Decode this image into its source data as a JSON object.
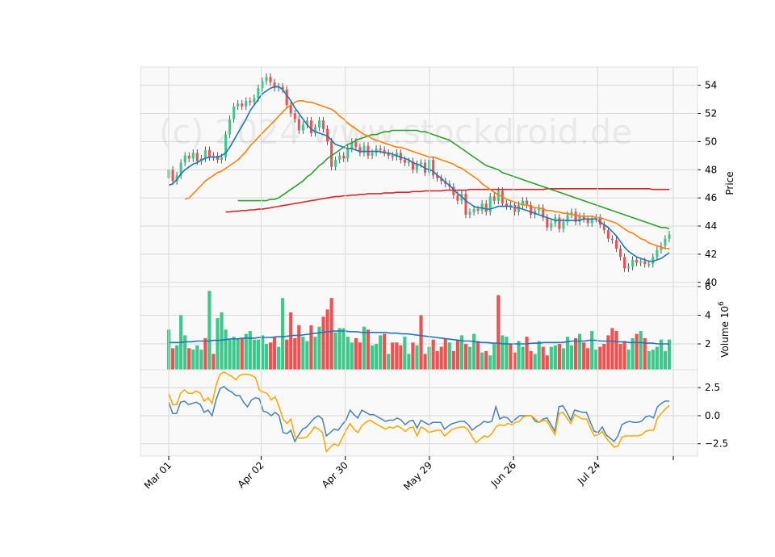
{
  "chart_data": [
    {
      "type": "candlestick",
      "panel": "price",
      "ylabel": "Price",
      "ylim": [
        39.7,
        55.3
      ],
      "yticks": [
        "40",
        "42",
        "44",
        "46",
        "48",
        "50",
        "52",
        "54"
      ],
      "xticks": [
        "Mar 01",
        "Apr 02",
        "Apr 30",
        "May 29",
        "Jun 26",
        "Jul 24"
      ],
      "watermark": "(c) 2024 www.stockdroid.de",
      "grid": true,
      "colors": {
        "up": "#3cc88a",
        "down": "#f05050",
        "ma10": "#1f77b4",
        "ma20": "#ff7f0e",
        "ma50": "#2ca02c",
        "ma200": "#d62728",
        "grid": "#d8d8d8",
        "panel_bg": "#f9f9f9"
      },
      "close": [
        48.0,
        47.2,
        47.6,
        48.5,
        49.0,
        48.8,
        49.2,
        48.6,
        48.8,
        49.4,
        48.9,
        49.0,
        48.7,
        48.9,
        50.5,
        51.6,
        52.5,
        52.7,
        52.5,
        52.9,
        52.8,
        53.1,
        53.8,
        54.3,
        54.6,
        54.2,
        53.8,
        53.9,
        53.7,
        52.6,
        52.0,
        51.6,
        50.8,
        51.2,
        51.5,
        50.6,
        51.0,
        51.5,
        50.9,
        50.0,
        48.2,
        48.7,
        49.0,
        48.8,
        49.5,
        50.0,
        49.6,
        49.2,
        49.7,
        49.0,
        49.2,
        49.5,
        49.4,
        49.2,
        49.0,
        48.9,
        49.2,
        48.7,
        48.5,
        48.6,
        48.0,
        48.4,
        48.5,
        47.8,
        48.7,
        47.6,
        47.4,
        47.2,
        47.0,
        46.8,
        46.2,
        45.8,
        46.3,
        44.8,
        45.0,
        45.2,
        45.1,
        45.6,
        45.0,
        46.1,
        45.8,
        46.5,
        45.6,
        45.4,
        45.5,
        45.0,
        45.5,
        45.8,
        45.5,
        44.8,
        45.1,
        45.3,
        44.6,
        43.9,
        44.2,
        44.6,
        43.8,
        44.3,
        44.8,
        45.0,
        44.3,
        44.7,
        44.5,
        44.2,
        44.5,
        44.6,
        44.1,
        43.7,
        43.1,
        43.0,
        42.4,
        41.8,
        41.0,
        41.1,
        41.6,
        41.4,
        41.5,
        41.3,
        41.3,
        41.8,
        42.3,
        42.6,
        43.1,
        43.4
      ],
      "ma10": [
        46.9,
        47.0,
        47.3,
        47.7,
        48.0,
        48.2,
        48.4,
        48.5,
        48.7,
        48.8,
        48.9,
        48.9,
        48.9,
        49.0,
        49.2,
        49.6,
        50.1,
        50.6,
        51.1,
        51.6,
        52.2,
        52.6,
        53.0,
        53.4,
        53.6,
        53.8,
        53.9,
        53.9,
        53.7,
        53.3,
        52.9,
        52.4,
        52.0,
        51.6,
        51.2,
        50.9,
        50.7,
        50.6,
        50.5,
        50.4,
        50.1,
        49.8,
        49.7,
        49.6,
        49.5,
        49.5,
        49.4,
        49.3,
        49.3,
        49.3,
        49.3,
        49.3,
        49.3,
        49.2,
        49.2,
        49.1,
        49.0,
        48.9,
        48.8,
        48.7,
        48.5,
        48.4,
        48.3,
        48.1,
        48.0,
        47.9,
        47.6,
        47.4,
        47.1,
        46.9,
        46.6,
        46.3,
        46.1,
        45.8,
        45.6,
        45.4,
        45.3,
        45.3,
        45.2,
        45.2,
        45.3,
        45.4,
        45.4,
        45.4,
        45.4,
        45.3,
        45.3,
        45.2,
        45.1,
        45.0,
        44.9,
        44.8,
        44.7,
        44.6,
        44.5,
        44.4,
        44.4,
        44.4,
        44.4,
        44.4,
        44.4,
        44.4,
        44.5,
        44.5,
        44.5,
        44.5,
        44.3,
        44.1,
        43.9,
        43.6,
        43.3,
        42.9,
        42.5,
        42.2,
        42.0,
        41.8,
        41.7,
        41.6,
        41.5,
        41.5,
        41.6,
        41.7,
        41.9,
        42.1
      ],
      "ma20": [
        45.9,
        46.0,
        46.3,
        46.6,
        46.9,
        47.2,
        47.4,
        47.6,
        47.8,
        47.9,
        48.1,
        48.3,
        48.5,
        48.7,
        49.0,
        49.3,
        49.7,
        50.0,
        50.3,
        50.6,
        50.9,
        51.2,
        51.5,
        51.8,
        52.1,
        52.4,
        52.6,
        52.8,
        52.9,
        52.9,
        52.8,
        52.8,
        52.7,
        52.6,
        52.5,
        52.4,
        52.3,
        52.1,
        51.8,
        51.6,
        51.3,
        51.1,
        50.9,
        50.7,
        50.5,
        50.4,
        50.2,
        50.1,
        50.0,
        49.9,
        49.8,
        49.7,
        49.6,
        49.6,
        49.5,
        49.4,
        49.3,
        49.2,
        49.1,
        49.0,
        48.9,
        48.9,
        48.8,
        48.7,
        48.6,
        48.5,
        48.4,
        48.2,
        48.1,
        47.9,
        47.7,
        47.5,
        47.3,
        47.0,
        46.8,
        46.6,
        46.4,
        46.2,
        46.1,
        45.9,
        45.8,
        45.7,
        45.6,
        45.5,
        45.5,
        45.4,
        45.3,
        45.3,
        45.2,
        45.1,
        45.1,
        45.0,
        45.0,
        44.9,
        44.9,
        44.8,
        44.8,
        44.7,
        44.7,
        44.7,
        44.7,
        44.6,
        44.6,
        44.5,
        44.4,
        44.3,
        44.2,
        44.0,
        43.8,
        43.6,
        43.5,
        43.3,
        43.1,
        43.0,
        42.8,
        42.7,
        42.6,
        42.5,
        42.4,
        42.4
      ],
      "ma50": [
        45.8,
        45.8,
        45.8,
        45.8,
        45.8,
        45.8,
        45.8,
        45.8,
        45.9,
        45.9,
        46.0,
        46.2,
        46.4,
        46.6,
        46.8,
        47.0,
        47.2,
        47.5,
        47.7,
        48.0,
        48.3,
        48.5,
        48.8,
        49.0,
        49.2,
        49.4,
        49.6,
        49.8,
        49.9,
        50.1,
        50.2,
        50.3,
        50.4,
        50.5,
        50.5,
        50.6,
        50.7,
        50.7,
        50.8,
        50.8,
        50.8,
        50.8,
        50.8,
        50.8,
        50.8,
        50.7,
        50.7,
        50.6,
        50.5,
        50.4,
        50.3,
        50.2,
        50.1,
        49.9,
        49.7,
        49.5,
        49.3,
        49.1,
        48.9,
        48.7,
        48.5,
        48.3,
        48.2,
        48.1,
        48.0,
        47.8,
        47.7,
        47.6,
        47.5,
        47.4,
        47.3,
        47.2,
        47.1,
        47.0,
        46.9,
        46.8,
        46.7,
        46.6,
        46.5,
        46.4,
        46.3,
        46.2,
        46.1,
        46.0,
        45.9,
        45.8,
        45.7,
        45.6,
        45.5,
        45.4,
        45.3,
        45.2,
        45.1,
        45.0,
        44.9,
        44.8,
        44.7,
        44.6,
        44.5,
        44.4,
        44.3,
        44.2,
        44.1,
        44.0,
        43.9,
        43.9,
        43.8
      ],
      "ma200": [
        45.0,
        45.0,
        45.05,
        45.05,
        45.1,
        45.1,
        45.15,
        45.15,
        45.2,
        45.2,
        45.25,
        45.3,
        45.35,
        45.4,
        45.45,
        45.5,
        45.55,
        45.6,
        45.65,
        45.7,
        45.75,
        45.8,
        45.85,
        45.9,
        45.95,
        46.0,
        46.05,
        46.1,
        46.1,
        46.15,
        46.15,
        46.2,
        46.2,
        46.25,
        46.25,
        46.3,
        46.3,
        46.3,
        46.3,
        46.35,
        46.35,
        46.35,
        46.4,
        46.4,
        46.4,
        46.4,
        46.45,
        46.45,
        46.45,
        46.5,
        46.5,
        46.5,
        46.5,
        46.5,
        46.55,
        46.55,
        46.55,
        46.55,
        46.55,
        46.55,
        46.6,
        46.6,
        46.6,
        46.6,
        46.6,
        46.6,
        46.6,
        46.6,
        46.6,
        46.6,
        46.6,
        46.6,
        46.6,
        46.6,
        46.6,
        46.6,
        46.6,
        46.6,
        46.6,
        46.65,
        46.65,
        46.65,
        46.65,
        46.65,
        46.65,
        46.65,
        46.65,
        46.65,
        46.65,
        46.65,
        46.65,
        46.65,
        46.65,
        46.65,
        46.65,
        46.65,
        46.65,
        46.65,
        46.65,
        46.65,
        46.65,
        46.65,
        46.65,
        46.65,
        46.65,
        46.6,
        46.6,
        46.6,
        46.6,
        46.6
      ]
    },
    {
      "type": "bar",
      "panel": "volume",
      "ylabel": "Volume",
      "multiplier": "10",
      "exponent": "6",
      "ylim": [
        0.2,
        6.0
      ],
      "yticks": [
        "2",
        "4",
        "6"
      ],
      "values": [
        3.0,
        1.7,
        1.9,
        4.0,
        2.6,
        1.7,
        1.6,
        1.9,
        1.6,
        2.4,
        5.7,
        1.3,
        3.8,
        4.2,
        3.0,
        2.3,
        2.5,
        2.4,
        2.4,
        2.7,
        2.9,
        2.3,
        2.3,
        2.6,
        2.0,
        2.1,
        2.5,
        1.8,
        5.2,
        2.3,
        4.2,
        2.4,
        3.3,
        2.5,
        2.2,
        3.3,
        2.5,
        3.2,
        3.9,
        4.4,
        5.2,
        2.8,
        3.1,
        3.1,
        2.5,
        2.1,
        2.4,
        2.1,
        3.2,
        3.0,
        1.9,
        2.0,
        2.6,
        2.7,
        1.3,
        2.1,
        2.1,
        1.9,
        2.5,
        1.3,
        2.1,
        1.9,
        4.0,
        1.3,
        1.8,
        2.3,
        1.5,
        1.8,
        2.4,
        2.1,
        1.5,
        2.3,
        2.6,
        2.0,
        1.8,
        2.7,
        2.2,
        1.4,
        1.5,
        1.2,
        2.0,
        5.4,
        2.6,
        2.5,
        2.0,
        1.4,
        2.2,
        1.8,
        2.5,
        1.5,
        1.3,
        2.2,
        1.8,
        1.2,
        1.8,
        1.9,
        2.0,
        1.7,
        2.5,
        1.9,
        2.4,
        2.7,
        2.1,
        1.7,
        2.9,
        1.6,
        1.8,
        2.0,
        2.6,
        3.1,
        2.9,
        2.0,
        2.2,
        1.6,
        2.4,
        2.7,
        2.9,
        2.4,
        1.5,
        1.6,
        1.8,
        2.3,
        1.5,
        2.3,
        1.6,
        1.6
      ],
      "up": [
        1,
        0,
        1,
        1,
        1,
        0,
        1,
        1,
        1,
        0,
        1,
        0,
        1,
        1,
        1,
        1,
        1,
        1,
        0,
        1,
        1,
        1,
        1,
        1,
        1,
        0,
        0,
        1,
        1,
        0,
        0,
        0,
        0,
        1,
        1,
        0,
        1,
        1,
        0,
        0,
        0,
        1,
        1,
        1,
        1,
        1,
        0,
        0,
        1,
        0,
        1,
        1,
        1,
        0,
        1,
        0,
        0,
        0,
        1,
        1,
        0,
        1,
        0,
        0,
        1,
        0,
        0,
        0,
        0,
        1,
        0,
        0,
        1,
        0,
        1,
        1,
        0,
        1,
        0,
        1,
        1,
        0,
        1,
        1,
        0,
        0,
        1,
        1,
        0,
        0,
        1,
        1,
        0,
        0,
        1,
        1,
        0,
        1,
        1,
        1,
        0,
        1,
        0,
        0,
        1,
        1,
        0,
        0,
        0,
        0,
        0,
        0,
        0,
        1,
        1,
        0,
        1,
        0,
        1,
        1,
        1,
        1,
        1,
        1,
        1,
        1
      ],
      "avg": [
        2.1,
        2.1,
        2.1,
        2.15,
        2.15,
        2.2,
        2.2,
        2.2,
        2.25,
        2.25,
        2.3,
        2.35,
        2.35,
        2.4,
        2.4,
        2.4,
        2.45,
        2.45,
        2.45,
        2.5,
        2.5,
        2.55,
        2.6,
        2.6,
        2.65,
        2.7,
        2.75,
        2.8,
        2.85,
        2.9,
        2.9,
        2.9,
        2.85,
        2.85,
        2.8,
        2.8,
        2.8,
        2.8,
        2.8,
        2.75,
        2.75,
        2.7,
        2.7,
        2.65,
        2.6,
        2.55,
        2.5,
        2.45,
        2.4,
        2.35,
        2.3,
        2.25,
        2.2,
        2.2,
        2.15,
        2.1,
        2.1,
        2.05,
        2.05,
        2.0,
        2.0,
        2.0,
        2.0,
        2.0,
        2.05,
        2.05,
        2.1,
        2.1,
        2.1,
        2.1,
        2.15,
        2.2,
        2.2,
        2.2,
        2.25,
        2.25,
        2.2,
        2.2,
        2.2,
        2.15,
        2.15,
        2.1,
        2.1,
        2.1,
        2.05,
        2.05,
        2.0,
        2.0,
        2.0
      ]
    },
    {
      "type": "line",
      "panel": "oscillator",
      "ylim": [
        -3.6,
        4.1
      ],
      "yticks": [
        "2.5",
        "0.0",
        "−2.5"
      ],
      "series": [
        {
          "color": "#4682b4",
          "values": [
            1.2,
            0.2,
            0.2,
            1.2,
            1.3,
            1.0,
            1.1,
            1.2,
            1.0,
            0.3,
            0.5,
            0.0,
            1.4,
            2.4,
            2.6,
            2.3,
            2.1,
            1.8,
            1.8,
            1.2,
            0.8,
            1.4,
            1.6,
            1.5,
            0.4,
            0.3,
            0.0,
            0.3,
            0.0,
            -1.5,
            -1.6,
            -1.3,
            -2.3,
            -1.7,
            -1.2,
            -1.0,
            -0.6,
            -0.2,
            0.0,
            -0.3,
            -1.8,
            -1.5,
            -1.2,
            -1.3,
            -0.8,
            -0.4,
            0.5,
            0.1,
            -0.2,
            0.5,
            0.3,
            0.1,
            0.1,
            -0.1,
            -0.3,
            -0.5,
            -0.4,
            -0.4,
            -0.2,
            -0.4,
            -0.8,
            -0.5,
            -0.4,
            -1.1,
            -0.4,
            -0.6,
            -0.8,
            -0.6,
            -0.6,
            -0.6,
            -1.2,
            -0.9,
            -0.7,
            -0.6,
            -0.5,
            -0.5,
            -0.8,
            -1.3,
            -1.0,
            -0.8,
            -0.5,
            -0.6,
            -0.5,
            0.8,
            -0.3,
            -0.1,
            -0.2,
            -0.6,
            -0.3,
            0.0,
            0.0,
            0.0,
            0.0,
            -0.5,
            -0.6,
            -0.3,
            -0.2,
            -0.8,
            -1.4,
            0.8,
            0.9,
            0.3,
            -0.4,
            0.5,
            0.4,
            0.3,
            0.3,
            -0.6,
            -1.4,
            -1.5,
            -1.0,
            -1.7,
            -2.0,
            -2.3,
            -1.8,
            -0.8,
            -0.6,
            -0.5,
            -0.6,
            -0.6,
            -0.5,
            -0.1,
            0.0,
            -0.2,
            0.8,
            1.1,
            1.3,
            1.3
          ]
        },
        {
          "color": "#ffa500",
          "values": [
            2.0,
            1.0,
            1.0,
            2.0,
            2.3,
            2.0,
            2.0,
            2.2,
            2.0,
            1.3,
            1.6,
            1.1,
            2.7,
            3.7,
            3.9,
            3.7,
            3.5,
            3.2,
            3.6,
            3.7,
            3.7,
            3.6,
            3.4,
            2.3,
            2.1,
            2.0,
            1.4,
            1.7,
            0.8,
            -0.3,
            -0.7,
            -0.3,
            -1.8,
            -2.0,
            -2.0,
            -1.9,
            -1.5,
            -1.0,
            -1.2,
            -1.5,
            -3.2,
            -2.8,
            -2.5,
            -2.7,
            -2.0,
            -1.3,
            -0.7,
            -1.2,
            -1.5,
            -0.9,
            -0.6,
            -0.4,
            -0.6,
            -0.8,
            -1.0,
            -1.2,
            -1.0,
            -1.1,
            -0.9,
            -1.1,
            -1.4,
            -1.1,
            -1.0,
            -1.8,
            -1.0,
            -1.2,
            -1.5,
            -1.4,
            -1.3,
            -1.3,
            -1.8,
            -1.5,
            -1.2,
            -1.1,
            -1.0,
            -1.0,
            -1.3,
            -1.9,
            -2.4,
            -2.1,
            -1.8,
            -1.9,
            -1.6,
            -1.0,
            -0.8,
            -0.9,
            -0.7,
            -0.8,
            -0.6,
            -0.5,
            -0.1,
            0.0,
            0.0,
            -0.3,
            -0.6,
            -0.4,
            -0.5,
            -1.1,
            -1.7,
            0.2,
            0.3,
            -0.2,
            -0.7,
            0.1,
            -0.1,
            -0.3,
            -0.3,
            -1.1,
            -1.8,
            -1.7,
            -1.4,
            -2.0,
            -2.4,
            -2.8,
            -2.7,
            -1.9,
            -1.8,
            -1.8,
            -1.8,
            -1.8,
            -1.7,
            -1.4,
            -1.3,
            -1.3,
            -0.2,
            0.2,
            0.6,
            0.9
          ]
        }
      ]
    }
  ]
}
